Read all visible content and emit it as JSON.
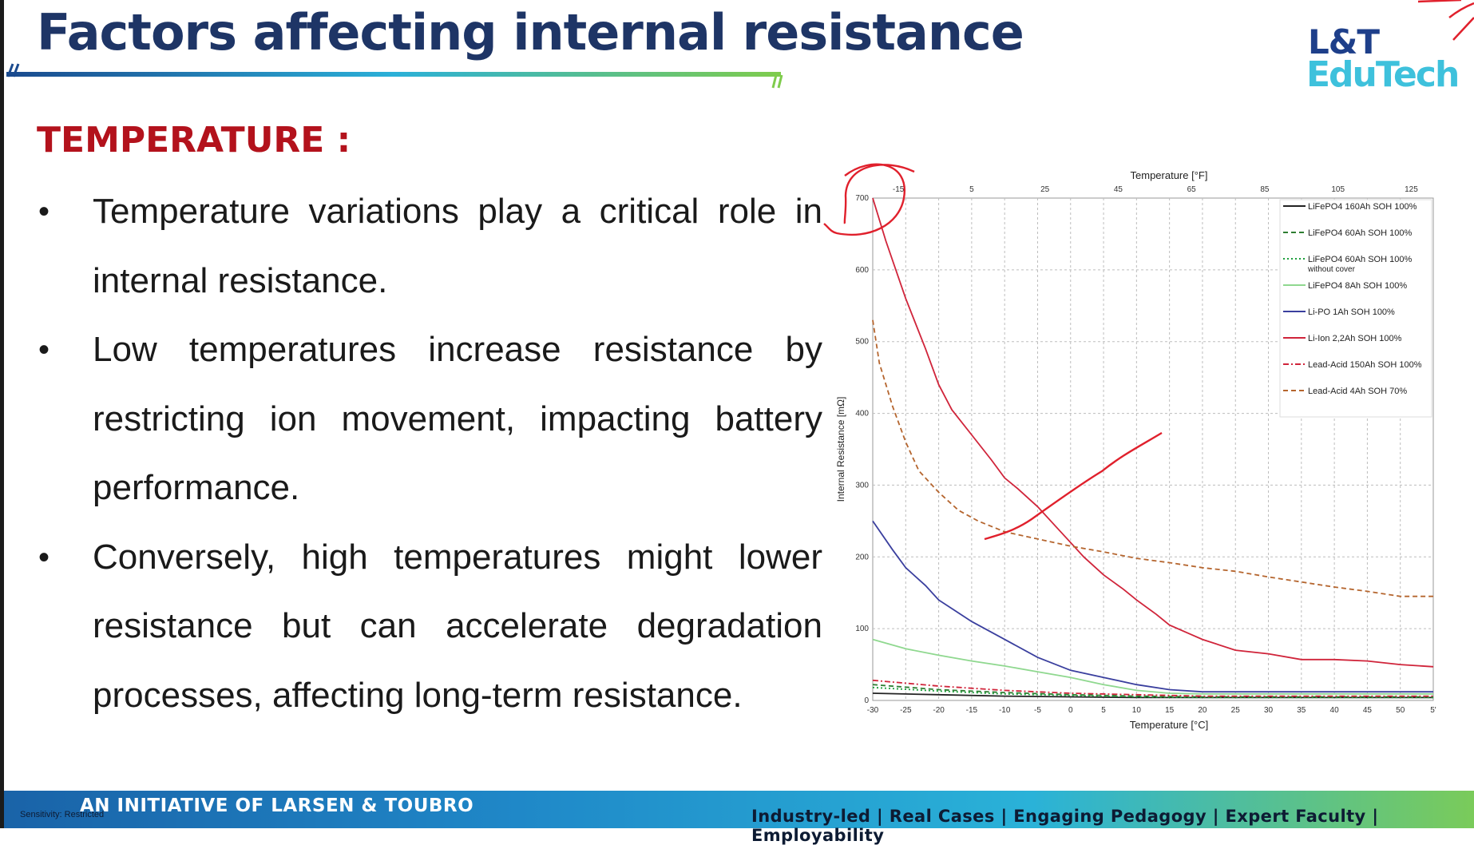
{
  "header": {
    "title": "Factors affecting internal resistance",
    "logo_line1": "L&T",
    "logo_line2": "EduTech"
  },
  "section": {
    "heading": "TEMPERATURE :",
    "bullets": [
      "Temperature variations play a critical role in internal resistance.",
      "Low temperatures increase resistance by restricting ion movement, impacting battery performance.",
      "Conversely, high temperatures might lower resistance but can accelerate degradation processes, affecting long-term resistance."
    ],
    "bullet_marker": "•"
  },
  "colors": {
    "title": "#1e3566",
    "heading": "#b3121c",
    "annotation": "#e0202c"
  },
  "chart_data": {
    "type": "line",
    "title": "",
    "xlabel": "Temperature  [°C]",
    "x2label": "Temperature  [°F]",
    "ylabel": "Internal Resistance  [mΩ]",
    "xlim": [
      -30,
      55
    ],
    "ylim": [
      0,
      700
    ],
    "x_ticks": [
      "-30",
      "-25",
      "-20",
      "-15",
      "-10",
      "-5",
      "0",
      "5",
      "10",
      "15",
      "20",
      "25",
      "30",
      "35",
      "40",
      "45",
      "50",
      "5'"
    ],
    "x2_ticks": [
      "-15",
      "5",
      "25",
      "45",
      "65",
      "85",
      "105",
      "125"
    ],
    "y_ticks": [
      "0",
      "100",
      "200",
      "300",
      "400",
      "500",
      "600",
      "700"
    ],
    "grid": true,
    "legend_position": "top-right",
    "series": [
      {
        "name": "LiFePO4 160Ah  SOH 100%",
        "subname": "",
        "color": "#222222",
        "style": "solid",
        "x": [
          -30,
          -20,
          -10,
          0,
          10,
          20,
          30,
          40,
          55
        ],
        "y": [
          10,
          8,
          6,
          5,
          4,
          4,
          4,
          4,
          4
        ]
      },
      {
        "name": "LiFePO4 60Ah  SOH 100%",
        "subname": "",
        "color": "#2e7d32",
        "style": "dashed",
        "x": [
          -30,
          -20,
          -10,
          0,
          10,
          20,
          30,
          40,
          55
        ],
        "y": [
          22,
          15,
          11,
          8,
          6,
          5,
          5,
          5,
          5
        ]
      },
      {
        "name": "LiFePO4 60Ah  SOH 100%",
        "subname": "without cover",
        "color": "#1b9e3a",
        "style": "dotted",
        "x": [
          -30,
          -20,
          -10,
          0,
          10,
          20,
          30,
          40,
          55
        ],
        "y": [
          18,
          13,
          9,
          7,
          5,
          4,
          4,
          4,
          4
        ]
      },
      {
        "name": "LiFePO4 8Ah  SOH 100%",
        "subname": "",
        "color": "#8fd88f",
        "style": "solid",
        "x": [
          -30,
          -25,
          -20,
          -15,
          -10,
          -5,
          0,
          5,
          10,
          15,
          20,
          30,
          40,
          55
        ],
        "y": [
          85,
          72,
          63,
          55,
          48,
          40,
          32,
          22,
          14,
          10,
          9,
          9,
          9,
          9
        ]
      },
      {
        "name": "Li-PO 1Ah  SOH 100%",
        "subname": "",
        "color": "#3a3f9e",
        "style": "solid",
        "x": [
          -30,
          -27,
          -25,
          -22,
          -20,
          -15,
          -10,
          -5,
          0,
          5,
          10,
          15,
          20,
          30,
          40,
          55
        ],
        "y": [
          250,
          210,
          185,
          160,
          140,
          110,
          85,
          60,
          42,
          32,
          22,
          15,
          12,
          12,
          12,
          12
        ]
      },
      {
        "name": "Li-Ion 2,2Ah  SOH 100%",
        "subname": "",
        "color": "#d0243a",
        "style": "solid",
        "x": [
          -30,
          -28,
          -25,
          -22,
          -20,
          -18,
          -15,
          -12,
          -10,
          -8,
          -5,
          -2,
          0,
          2,
          5,
          8,
          10,
          13,
          15,
          18,
          20,
          25,
          30,
          35,
          40,
          45,
          50,
          55
        ],
        "y": [
          700,
          640,
          560,
          490,
          440,
          405,
          370,
          335,
          310,
          295,
          270,
          240,
          220,
          200,
          175,
          155,
          140,
          120,
          105,
          93,
          85,
          70,
          65,
          57,
          57,
          55,
          50,
          47
        ]
      },
      {
        "name": "Lead-Acid 150Ah  SOH 100%",
        "subname": "",
        "color": "#d0243a",
        "style": "dashdot",
        "x": [
          -30,
          -20,
          -10,
          0,
          10,
          20,
          30,
          40,
          55
        ],
        "y": [
          28,
          20,
          14,
          10,
          8,
          6,
          6,
          6,
          6
        ]
      },
      {
        "name": "Lead-Acid 4Ah  SOH 70%",
        "subname": "",
        "color": "#b5652e",
        "style": "dashed",
        "x": [
          -30,
          -29,
          -27,
          -25,
          -23,
          -20,
          -17,
          -14,
          -10,
          -5,
          0,
          5,
          10,
          15,
          20,
          25,
          30,
          35,
          40,
          45,
          50,
          55
        ],
        "y": [
          530,
          470,
          410,
          360,
          320,
          290,
          265,
          250,
          235,
          225,
          215,
          207,
          198,
          192,
          185,
          180,
          172,
          165,
          158,
          152,
          145,
          145
        ]
      }
    ]
  }
}
